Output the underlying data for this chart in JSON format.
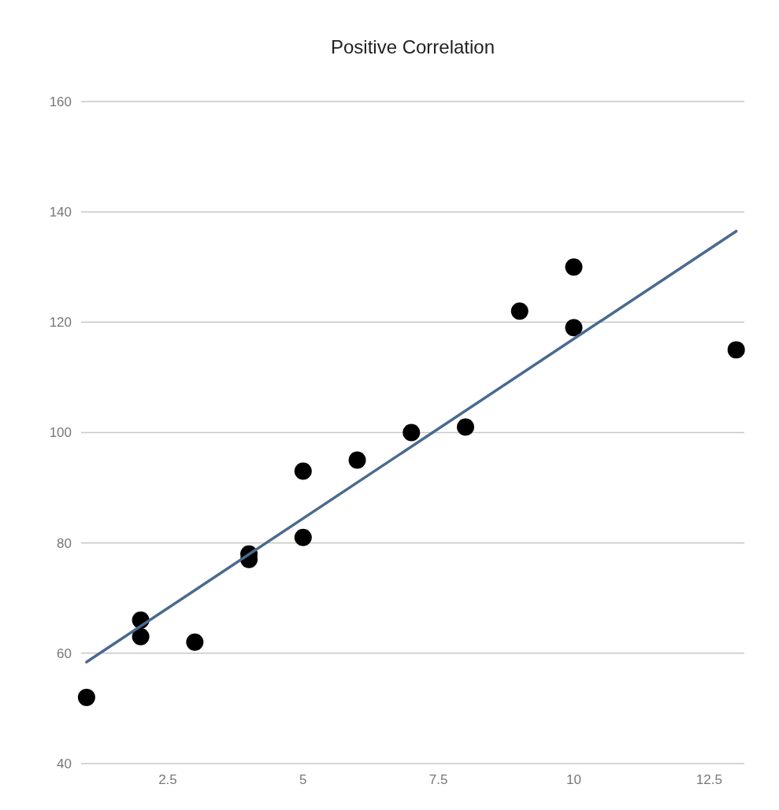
{
  "chart_data": {
    "type": "scatter",
    "title": "Positive Correlation",
    "xlim": [
      0.9,
      13.15
    ],
    "xticks": [
      2.5,
      5,
      7.5,
      10,
      12.5
    ],
    "ylim": [
      40,
      160
    ],
    "yticks": [
      40,
      60,
      80,
      100,
      120,
      140,
      160
    ],
    "grid": "y",
    "marker": "circle",
    "series": [
      {
        "color": "#000000",
        "x": [
          1,
          2,
          2,
          3,
          4,
          4,
          5,
          5,
          6,
          7,
          8,
          9,
          10,
          10,
          13
        ],
        "values": [
          52,
          66,
          63,
          62,
          78,
          77,
          93,
          81,
          95,
          100,
          101,
          122,
          130,
          119,
          115
        ]
      },
      {
        "type": "line",
        "marker": "none",
        "color": "#4a6a8f",
        "x": [
          1,
          13
        ],
        "values": [
          58.4,
          136.5
        ]
      }
    ]
  }
}
